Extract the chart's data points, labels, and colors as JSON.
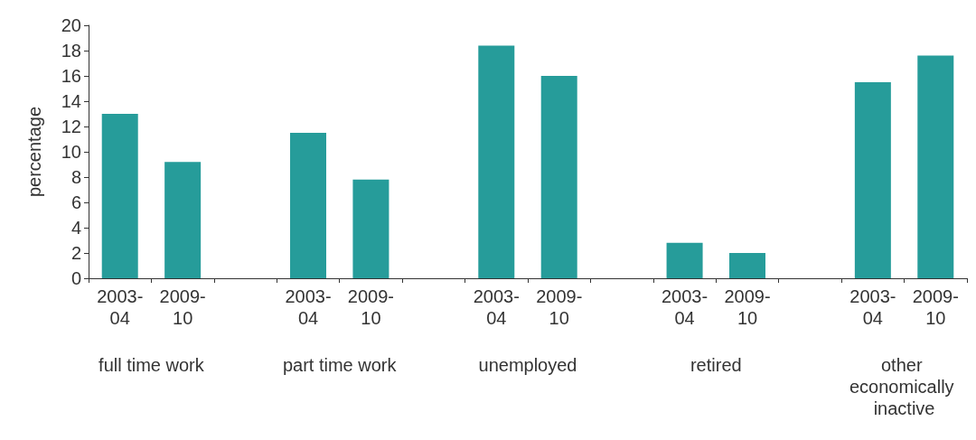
{
  "chart_data": {
    "type": "bar",
    "ylabel": "percentage",
    "categories": [
      "2003-\n04",
      "2009-\n10",
      null,
      "2003-\n04",
      "2009-\n10",
      null,
      "2003-\n04",
      "2009-\n10",
      null,
      "2003-\n04",
      "2009-\n10",
      null,
      "2003-\n04",
      "2009-\n10"
    ],
    "values": [
      13.0,
      9.2,
      null,
      11.5,
      7.8,
      null,
      18.4,
      16.0,
      null,
      2.8,
      2.0,
      null,
      15.5,
      17.6
    ],
    "color": "#269c9a",
    "ylim": [
      0,
      20
    ],
    "yticks": [
      0,
      2,
      4,
      6,
      8,
      10,
      12,
      14,
      16,
      18,
      20
    ],
    "annotations": [
      "full time work",
      "part time work",
      "unemployed",
      "retired",
      "other economically inactive"
    ],
    "grid": false
  }
}
